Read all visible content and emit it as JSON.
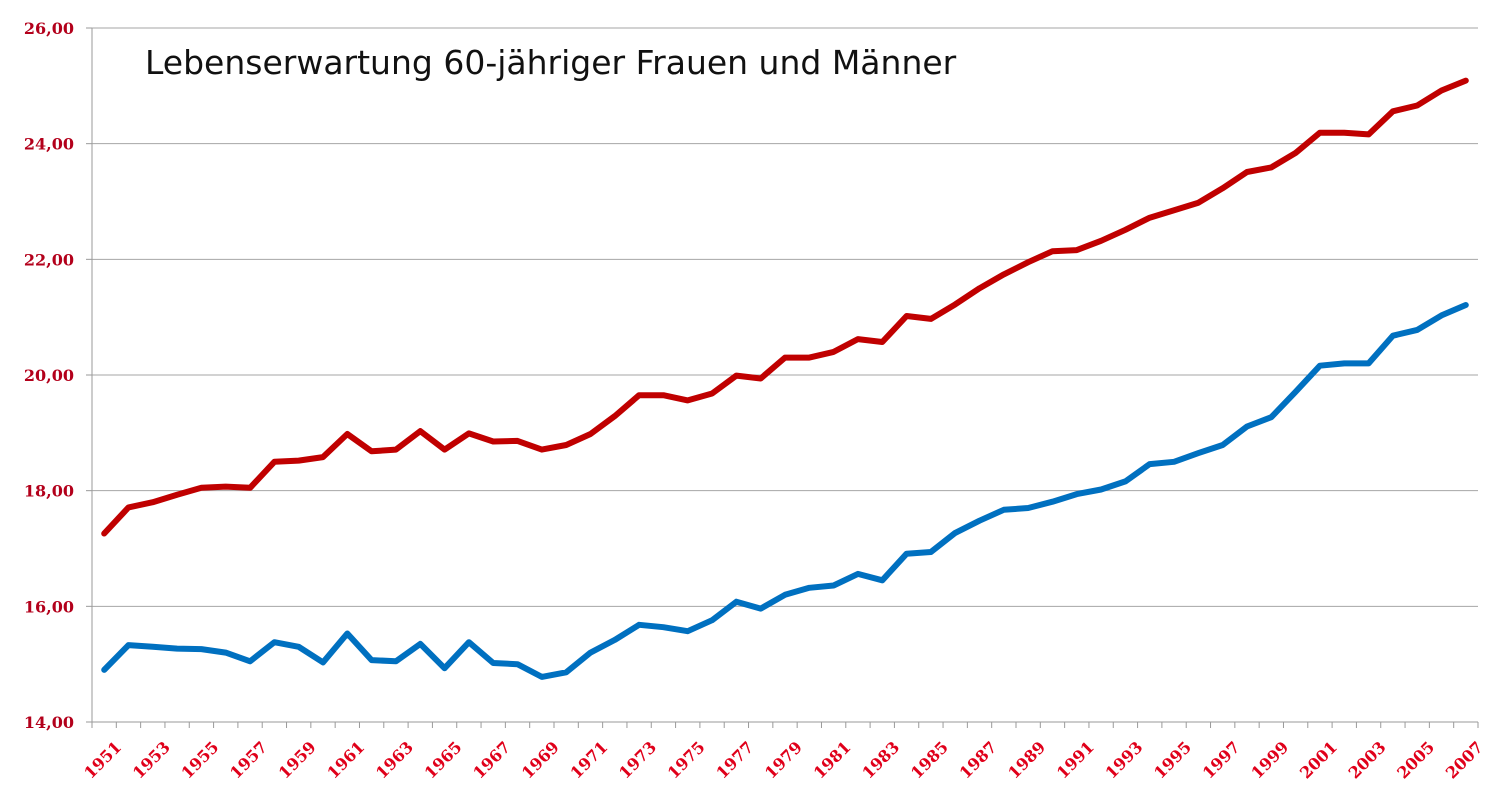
{
  "chart_data": {
    "type": "line",
    "title": "Lebenserwartung 60-jähriger Frauen und Männer",
    "xlabel": "",
    "ylabel": "",
    "ylim": [
      14,
      26
    ],
    "y_ticks": [
      "14,00",
      "16,00",
      "18,00",
      "20,00",
      "22,00",
      "24,00",
      "26,00"
    ],
    "grid": true,
    "legend": "none",
    "x": [
      1951,
      1952,
      1953,
      1954,
      1955,
      1956,
      1957,
      1958,
      1959,
      1960,
      1961,
      1962,
      1963,
      1964,
      1965,
      1966,
      1967,
      1968,
      1969,
      1970,
      1971,
      1972,
      1973,
      1974,
      1975,
      1976,
      1977,
      1978,
      1979,
      1980,
      1981,
      1982,
      1983,
      1984,
      1985,
      1986,
      1987,
      1988,
      1989,
      1990,
      1991,
      1992,
      1993,
      1994,
      1995,
      1996,
      1997,
      1998,
      1999,
      2000,
      2001,
      2002,
      2003,
      2004,
      2005,
      2006,
      2007
    ],
    "x_tick_labels": [
      "1951",
      "1953",
      "1955",
      "1957",
      "1959",
      "1961",
      "1963",
      "1965",
      "1967",
      "1969",
      "1971",
      "1973",
      "1975",
      "1977",
      "1979",
      "1981",
      "1983",
      "1985",
      "1987",
      "1989",
      "1991",
      "1993",
      "1995",
      "1997",
      "1999",
      "2001",
      "2003",
      "2005",
      "2007"
    ],
    "series": [
      {
        "color": "#c00000",
        "values": [
          17.26,
          17.71,
          17.8,
          17.93,
          18.05,
          18.07,
          18.05,
          18.5,
          18.52,
          18.58,
          18.98,
          18.68,
          18.71,
          19.03,
          18.71,
          18.99,
          18.85,
          18.86,
          18.71,
          18.79,
          18.98,
          19.29,
          19.65,
          19.65,
          19.56,
          19.68,
          19.99,
          19.94,
          20.3,
          20.3,
          20.4,
          20.62,
          20.57,
          21.02,
          20.97,
          21.22,
          21.5,
          21.74,
          21.95,
          22.14,
          22.16,
          22.32,
          22.51,
          22.72,
          22.85,
          22.98,
          23.23,
          23.51,
          23.59,
          23.84,
          24.19,
          24.19,
          24.16,
          24.56,
          24.66,
          24.92,
          25.09
        ]
      },
      {
        "color": "#0070c0",
        "values": [
          14.9,
          15.33,
          15.3,
          15.27,
          15.26,
          15.2,
          15.05,
          15.38,
          15.3,
          15.03,
          15.53,
          15.07,
          15.05,
          15.35,
          14.93,
          15.38,
          15.02,
          15.0,
          14.78,
          14.86,
          15.2,
          15.42,
          15.68,
          15.64,
          15.57,
          15.76,
          16.08,
          15.96,
          16.2,
          16.32,
          16.36,
          16.56,
          16.45,
          16.91,
          16.94,
          17.27,
          17.48,
          17.67,
          17.7,
          17.81,
          17.94,
          18.02,
          18.16,
          18.46,
          18.5,
          18.65,
          18.79,
          19.11,
          19.27,
          19.71,
          20.16,
          20.2,
          20.2,
          20.68,
          20.78,
          21.03,
          21.21
        ]
      }
    ]
  }
}
